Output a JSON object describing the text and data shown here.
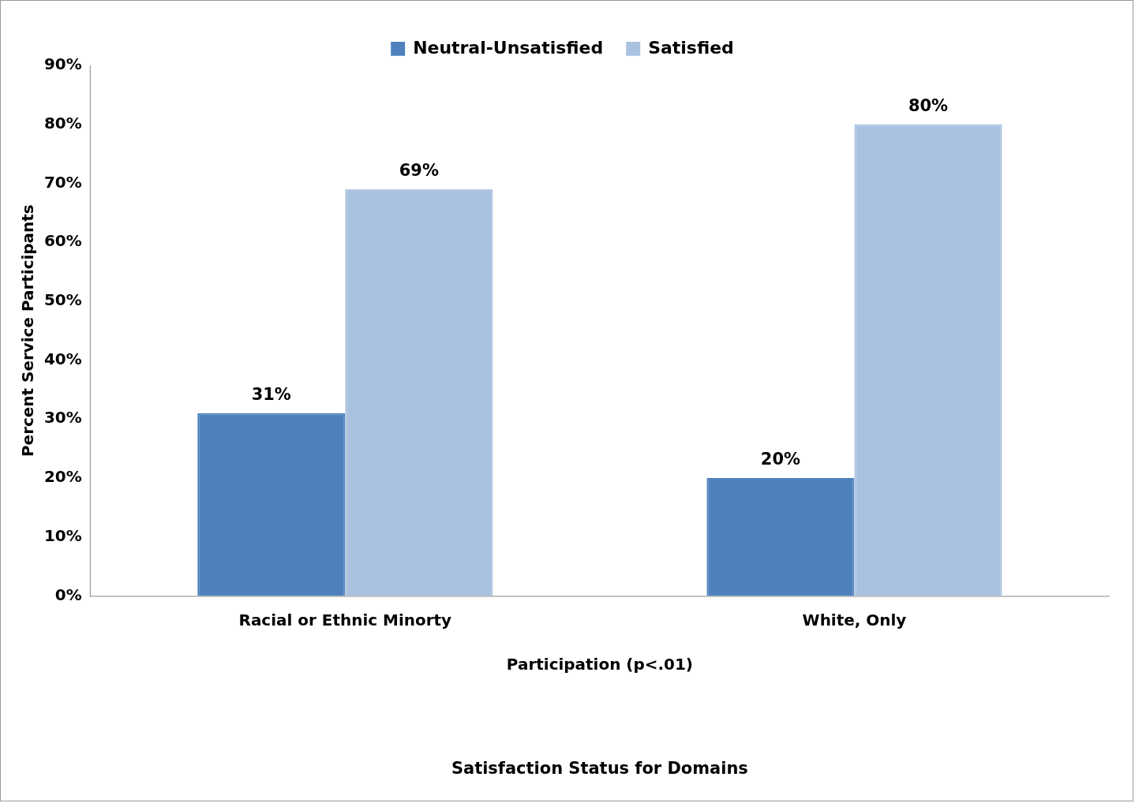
{
  "chart_data": {
    "type": "bar",
    "xlabel": "Participation (p<.01)",
    "ylabel": "Percent Service Participants",
    "annotations": [
      "Satisfaction Status for Domains"
    ],
    "categories": [
      "Racial or Ethnic Minorty",
      "White, Only"
    ],
    "series": [
      {
        "name": "Neutral-Unsatisfied",
        "color": "#4f81bd",
        "values": [
          31,
          20
        ],
        "value_labels": [
          "31%",
          "20%"
        ]
      },
      {
        "name": "Satisfied",
        "color": "#a9c2e0",
        "values": [
          69,
          80
        ],
        "value_labels": [
          "69%",
          "80%"
        ]
      }
    ],
    "ylim": [
      0,
      90
    ],
    "yticks": [
      {
        "value": 0,
        "label": "0%"
      },
      {
        "value": 10,
        "label": "10%"
      },
      {
        "value": 20,
        "label": "20%"
      },
      {
        "value": 30,
        "label": "30%"
      },
      {
        "value": 40,
        "label": "40%"
      },
      {
        "value": 50,
        "label": "50%"
      },
      {
        "value": 60,
        "label": "60%"
      },
      {
        "value": 70,
        "label": "70%"
      },
      {
        "value": 80,
        "label": "80%"
      },
      {
        "value": 90,
        "label": "90%"
      }
    ],
    "grid": false,
    "legend": "top"
  }
}
